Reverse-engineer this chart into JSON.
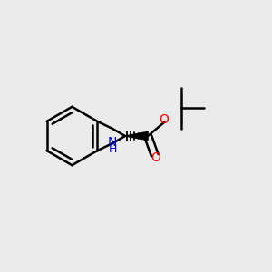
{
  "background_color": "#EBEBEB",
  "bond_color": "#000000",
  "bond_width": 1.8,
  "atom_colors": {
    "N": "#0000CC",
    "O": "#FF0000",
    "C": "#000000"
  },
  "font_size_N": 10,
  "font_size_H": 9,
  "font_size_O": 10,
  "bx": 0.27,
  "by": 0.5,
  "s": 0.105,
  "bl5": 0.09,
  "bl_ester": 0.082,
  "bl_tbu": 0.078
}
